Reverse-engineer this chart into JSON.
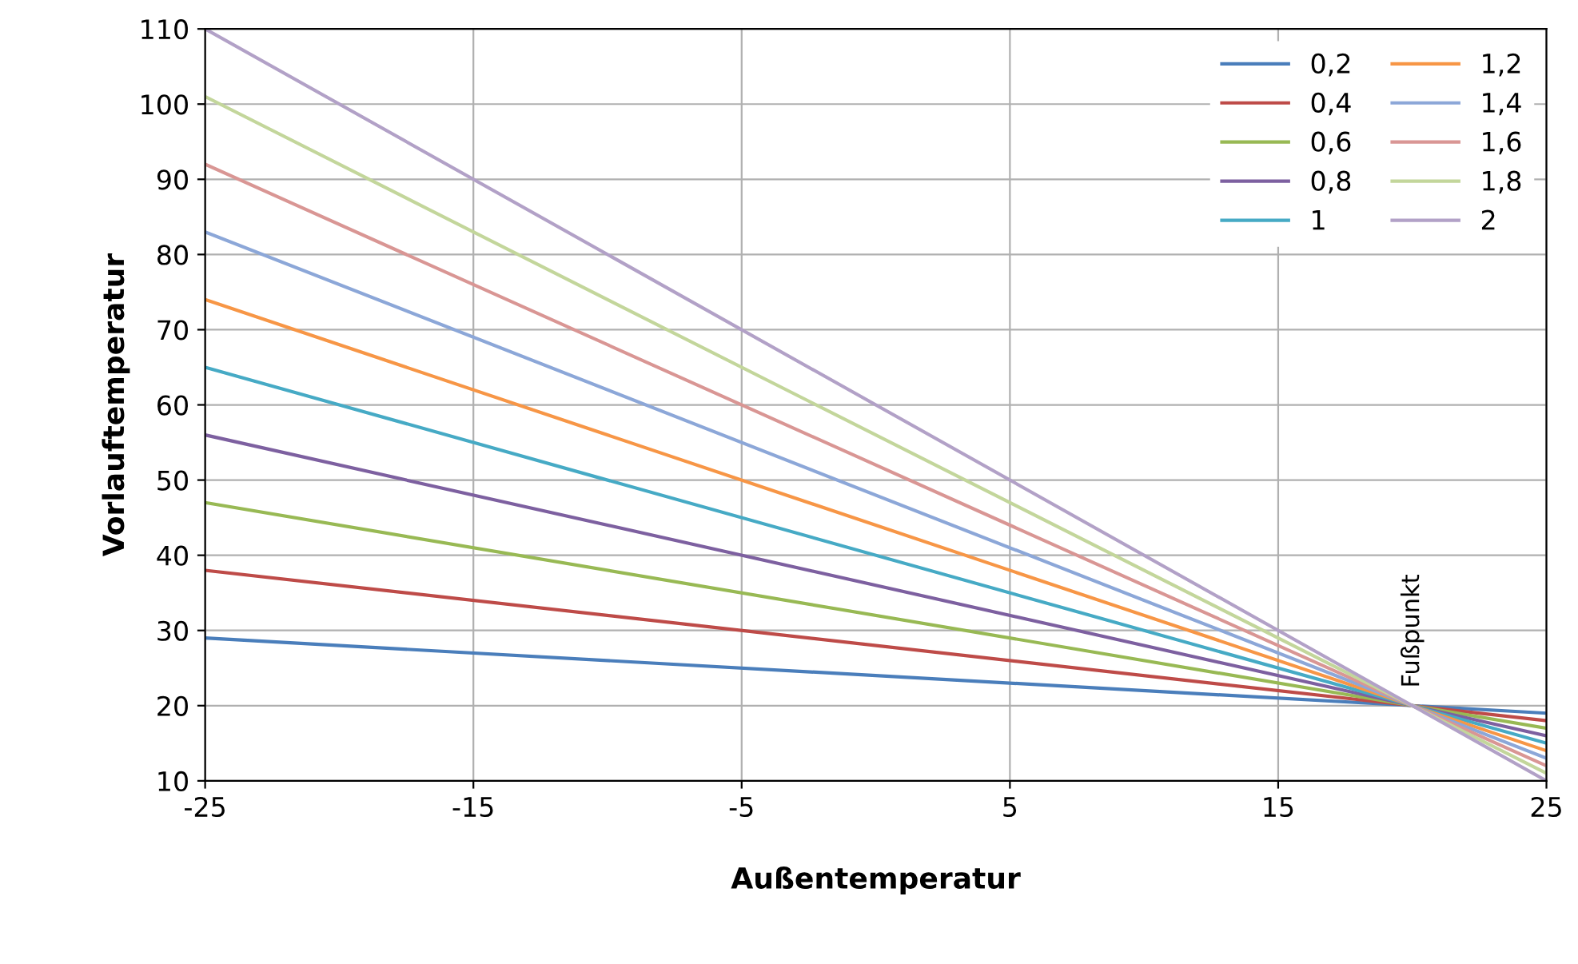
{
  "chart_data": {
    "type": "line",
    "xlabel": "Außentemperatur",
    "ylabel": "Vorlauftemperatur",
    "x": [
      -25,
      20,
      25
    ],
    "series": [
      {
        "name": "0,2",
        "color": "#4a7ebb",
        "values": [
          29,
          20,
          19
        ]
      },
      {
        "name": "0,4",
        "color": "#be4b48",
        "values": [
          38,
          20,
          18
        ]
      },
      {
        "name": "0,6",
        "color": "#98b954",
        "values": [
          47,
          20,
          17
        ]
      },
      {
        "name": "0,8",
        "color": "#7d60a0",
        "values": [
          56,
          20,
          16
        ]
      },
      {
        "name": "1",
        "color": "#46aac5",
        "values": [
          65,
          20,
          15
        ]
      },
      {
        "name": "1,2",
        "color": "#f79646",
        "values": [
          74,
          20,
          14
        ]
      },
      {
        "name": "1,4",
        "color": "#8ca7d8",
        "values": [
          83,
          20,
          13
        ]
      },
      {
        "name": "1,6",
        "color": "#d99694",
        "values": [
          92,
          20,
          12
        ]
      },
      {
        "name": "1,8",
        "color": "#c3d69b",
        "values": [
          101,
          20,
          11
        ]
      },
      {
        "name": "2",
        "color": "#b2a1c7",
        "values": [
          110,
          20,
          10
        ]
      }
    ],
    "xlim": [
      -25,
      25
    ],
    "xticks": [
      -25,
      -15,
      -5,
      5,
      15,
      25
    ],
    "ylim": [
      10,
      110
    ],
    "yticks": [
      10,
      20,
      30,
      40,
      50,
      60,
      70,
      80,
      90,
      100,
      110
    ],
    "grid": true,
    "legend": "top right",
    "marker": "none",
    "line_style": "solid",
    "annotations": [
      {
        "text": "Fußpunkt",
        "x": 20,
        "y": 20
      }
    ]
  }
}
